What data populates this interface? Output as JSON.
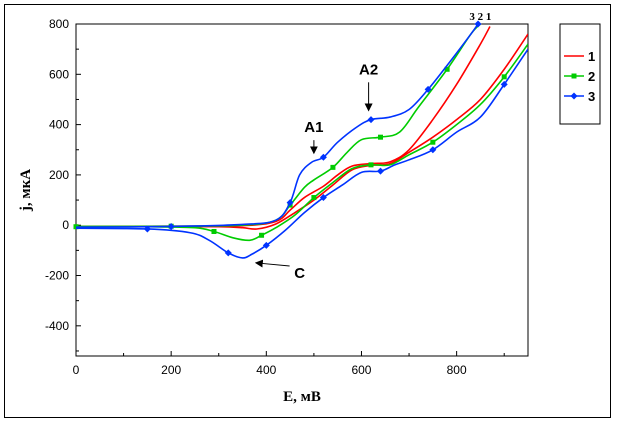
{
  "chart_data": {
    "type": "line",
    "xlabel": "E, мВ",
    "ylabel": "j, мкА",
    "xlim": [
      0,
      950
    ],
    "ylim": [
      -520,
      800
    ],
    "x_ticks": [
      0,
      200,
      400,
      600,
      800
    ],
    "y_ticks": [
      -400,
      -200,
      0,
      200,
      400,
      600,
      800
    ],
    "grid": false,
    "legend_position": "top-right outside",
    "series": [
      {
        "name": "1",
        "color": "#ff0000",
        "marker": "none",
        "forward": [
          [
            0,
            -5
          ],
          [
            200,
            -4
          ],
          [
            350,
            -2
          ],
          [
            420,
            15
          ],
          [
            450,
            60
          ],
          [
            480,
            110
          ],
          [
            520,
            155
          ],
          [
            550,
            200
          ],
          [
            580,
            235
          ],
          [
            620,
            245
          ],
          [
            660,
            252
          ],
          [
            700,
            300
          ],
          [
            750,
            420
          ],
          [
            800,
            560
          ],
          [
            850,
            720
          ],
          [
            870,
            790
          ]
        ],
        "reverse": [
          [
            950,
            760
          ],
          [
            900,
            620
          ],
          [
            850,
            500
          ],
          [
            800,
            420
          ],
          [
            750,
            350
          ],
          [
            700,
            290
          ],
          [
            660,
            245
          ],
          [
            620,
            238
          ],
          [
            580,
            220
          ],
          [
            540,
            160
          ],
          [
            500,
            100
          ],
          [
            460,
            50
          ],
          [
            420,
            5
          ],
          [
            380,
            -15
          ],
          [
            350,
            -10
          ],
          [
            300,
            -6
          ],
          [
            200,
            -5
          ],
          [
            0,
            -6
          ]
        ]
      },
      {
        "name": "2",
        "color": "#00cc00",
        "marker": "square",
        "forward": [
          [
            0,
            -5
          ],
          [
            200,
            -4
          ],
          [
            350,
            0
          ],
          [
            420,
            20
          ],
          [
            450,
            80
          ],
          [
            480,
            150
          ],
          [
            500,
            180
          ],
          [
            540,
            230
          ],
          [
            570,
            290
          ],
          [
            600,
            340
          ],
          [
            640,
            350
          ],
          [
            680,
            370
          ],
          [
            720,
            470
          ],
          [
            780,
            620
          ],
          [
            830,
            760
          ],
          [
            850,
            800
          ]
        ],
        "reverse": [
          [
            950,
            720
          ],
          [
            900,
            590
          ],
          [
            850,
            480
          ],
          [
            800,
            400
          ],
          [
            750,
            330
          ],
          [
            700,
            280
          ],
          [
            660,
            240
          ],
          [
            620,
            240
          ],
          [
            580,
            225
          ],
          [
            540,
            170
          ],
          [
            500,
            110
          ],
          [
            460,
            40
          ],
          [
            420,
            -10
          ],
          [
            390,
            -40
          ],
          [
            365,
            -60
          ],
          [
            330,
            -50
          ],
          [
            290,
            -25
          ],
          [
            250,
            -10
          ],
          [
            150,
            -6
          ],
          [
            0,
            -6
          ]
        ]
      },
      {
        "name": "3",
        "color": "#0033ff",
        "marker": "diamond",
        "forward": [
          [
            0,
            -8
          ],
          [
            200,
            -5
          ],
          [
            350,
            3
          ],
          [
            420,
            20
          ],
          [
            450,
            90
          ],
          [
            470,
            200
          ],
          [
            495,
            250
          ],
          [
            520,
            270
          ],
          [
            550,
            330
          ],
          [
            590,
            390
          ],
          [
            620,
            420
          ],
          [
            660,
            430
          ],
          [
            700,
            460
          ],
          [
            740,
            540
          ],
          [
            790,
            660
          ],
          [
            830,
            760
          ],
          [
            845,
            800
          ]
        ],
        "reverse": [
          [
            950,
            700
          ],
          [
            900,
            560
          ],
          [
            850,
            430
          ],
          [
            800,
            370
          ],
          [
            750,
            300
          ],
          [
            700,
            260
          ],
          [
            670,
            240
          ],
          [
            640,
            215
          ],
          [
            600,
            210
          ],
          [
            560,
            160
          ],
          [
            520,
            110
          ],
          [
            480,
            50
          ],
          [
            440,
            -20
          ],
          [
            400,
            -80
          ],
          [
            370,
            -115
          ],
          [
            350,
            -130
          ],
          [
            320,
            -110
          ],
          [
            280,
            -60
          ],
          [
            240,
            -30
          ],
          [
            150,
            -15
          ],
          [
            0,
            -12
          ]
        ]
      }
    ],
    "annotations": [
      {
        "text": "A1",
        "x": 500,
        "y": 370,
        "arrow_to": [
          500,
          290
        ]
      },
      {
        "text": "A2",
        "x": 615,
        "y": 600,
        "arrow_to": [
          615,
          460
        ]
      },
      {
        "text": "C",
        "x": 470,
        "y": -210,
        "arrow_to": [
          380,
          -150
        ]
      },
      {
        "text": "3 2 1",
        "x": 850,
        "y": 815
      }
    ]
  }
}
